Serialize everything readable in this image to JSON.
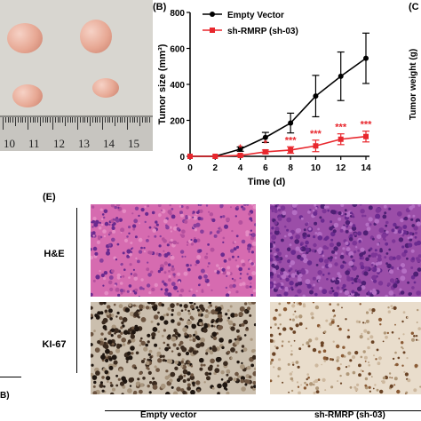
{
  "panels": {
    "b_label": "(B)",
    "c_label": "(C",
    "e_label": "(E)",
    "left_clip_label": "B)"
  },
  "photo": {
    "ruler_numbers": [
      "10",
      "11",
      "12",
      "13",
      "14",
      "15"
    ]
  },
  "right_clip": {
    "ylabel": "Tumor weight (g)"
  },
  "chart_data": {
    "type": "line",
    "title": "",
    "xlabel": "Time (d)",
    "ylabel": "Tumor size (mm³)",
    "xlim": [
      0,
      14
    ],
    "ylim": [
      0,
      800
    ],
    "x_ticks": [
      "0",
      "2",
      "4",
      "6",
      "8",
      "10",
      "12",
      "14"
    ],
    "y_ticks": [
      "0",
      "200",
      "400",
      "600",
      "800"
    ],
    "legend_position": "top-left",
    "x": [
      0,
      2,
      4,
      6,
      8,
      10,
      12,
      14
    ],
    "series": [
      {
        "name": "Empty Vector",
        "color": "#000000",
        "marker": "circle",
        "values": [
          0,
          0,
          40,
          105,
          185,
          335,
          445,
          545
        ],
        "errors": [
          0,
          0,
          12,
          28,
          55,
          115,
          135,
          140
        ]
      },
      {
        "name": "sh-RMRP (sh-03)",
        "color": "#e8272d",
        "marker": "square",
        "values": [
          0,
          0,
          5,
          25,
          35,
          58,
          95,
          110
        ],
        "errors": [
          0,
          0,
          4,
          10,
          18,
          32,
          30,
          30
        ]
      }
    ],
    "annotations": [
      {
        "x": 4,
        "text": "*"
      },
      {
        "x": 6,
        "text": "*"
      },
      {
        "x": 8,
        "text": "***"
      },
      {
        "x": 10,
        "text": "***"
      },
      {
        "x": 12,
        "text": "***"
      },
      {
        "x": 14,
        "text": "***"
      }
    ]
  },
  "histology": {
    "row_labels": [
      "H&E",
      "KI-67"
    ],
    "group_labels": [
      "Empty vector",
      "sh-RMRP (sh-03)"
    ],
    "colors": {
      "he_pink": "#d66bb0",
      "he_purple": "#6a2a8f",
      "ki67_dark": "#3a2a1e",
      "ki67_light": "#e9ddcc"
    }
  }
}
